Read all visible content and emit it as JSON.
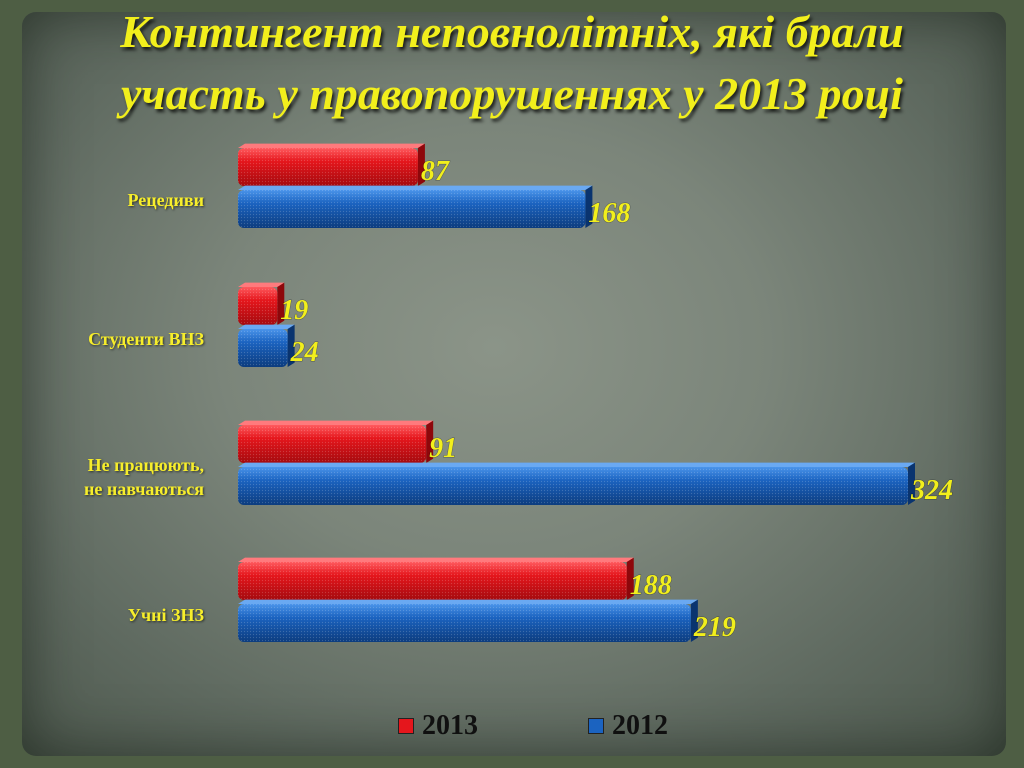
{
  "title_line1": "Контингент неповнолітніх, які брали",
  "title_line2": "участь у правопорушеннях у 2013 році",
  "chart_data": {
    "type": "bar",
    "orientation": "horizontal",
    "categories": [
      "Рецедиви",
      "Студенти ВНЗ",
      "Не працюють, не навчаються",
      "Учні ЗНЗ"
    ],
    "series": [
      {
        "name": "2013",
        "values": [
          87,
          19,
          91,
          188
        ],
        "color": "#e5161c"
      },
      {
        "name": "2012",
        "values": [
          168,
          24,
          324,
          219
        ],
        "color": "#1b63c0"
      }
    ],
    "xlim": [
      0,
      324
    ],
    "legend_position": "bottom",
    "grid": false
  },
  "category_labels": {
    "c0": "Рецедиви",
    "c1": "Студенти ВНЗ",
    "c2_line1": "Не працюють,",
    "c2_line2": "не навчаються",
    "c3": "Учні ЗНЗ"
  },
  "legend": {
    "s2013": "2013",
    "s2012": "2012"
  }
}
